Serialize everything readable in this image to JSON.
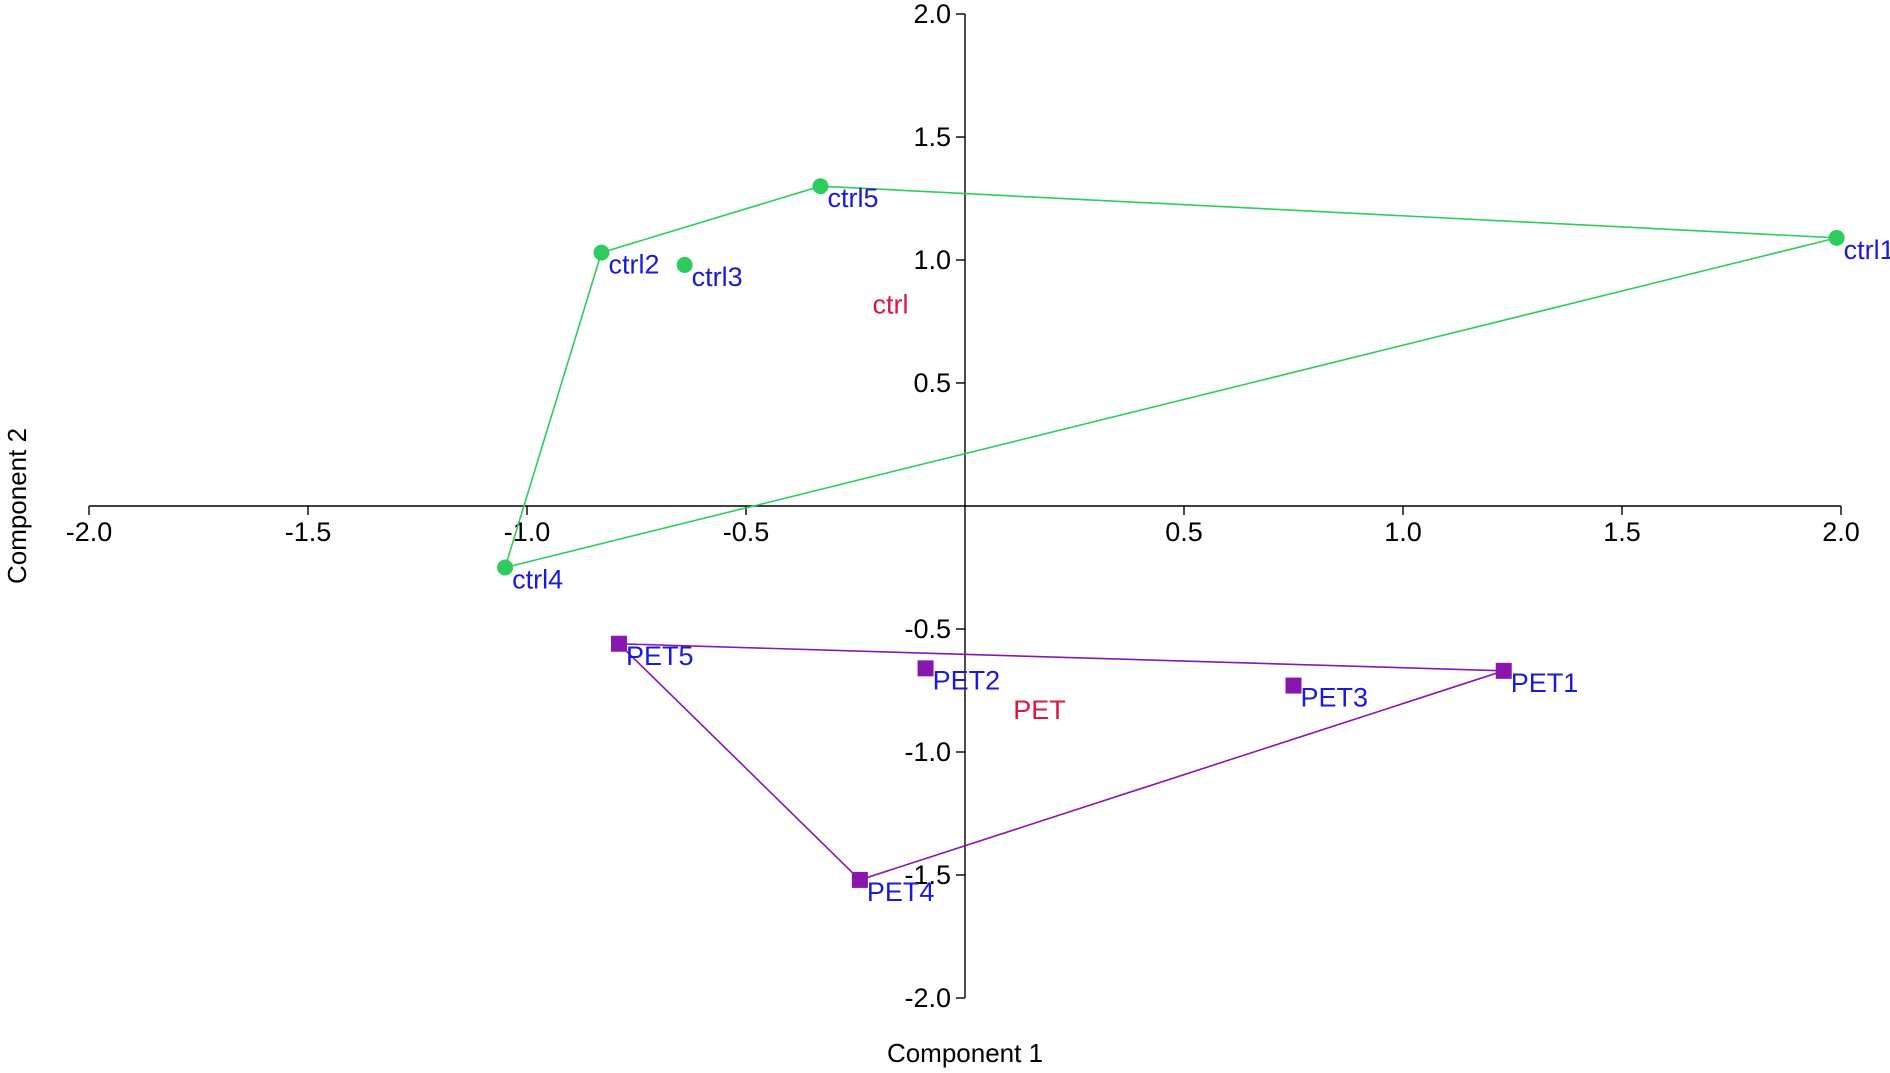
{
  "chart_data": {
    "type": "scatter",
    "xlabel": "Component 1",
    "ylabel": "Component 2",
    "xlim": [
      -2.0,
      2.0
    ],
    "ylim": [
      -2.0,
      2.0
    ],
    "xticks": [
      "-2.0",
      "-1.5",
      "-1.0",
      "-0.5",
      "0.5",
      "1.0",
      "1.5",
      "2.0"
    ],
    "yticks": [
      "2.0",
      "1.5",
      "1.0",
      "0.5",
      "-0.5",
      "-1.0",
      "-1.5",
      "-2.0"
    ],
    "xtick_values": [
      -2.0,
      -1.5,
      -1.0,
      -0.5,
      0.5,
      1.0,
      1.5,
      2.0
    ],
    "ytick_values": [
      2.0,
      1.5,
      1.0,
      0.5,
      -0.5,
      -1.0,
      -1.5,
      -2.0
    ],
    "grid": false,
    "label_color": "#1a1adb",
    "centroid_color": "#e0143c",
    "series": [
      {
        "group": "ctrl",
        "marker": "circle",
        "color": "#2ecc5f",
        "points": [
          {
            "label": "ctrl1",
            "x": 1.99,
            "y": 1.09
          },
          {
            "label": "ctrl2",
            "x": -0.83,
            "y": 1.03
          },
          {
            "label": "ctrl3",
            "x": -0.64,
            "y": 0.98
          },
          {
            "label": "ctrl4",
            "x": -1.05,
            "y": -0.25
          },
          {
            "label": "ctrl5",
            "x": -0.33,
            "y": 1.3
          }
        ],
        "hull": [
          "ctrl5",
          "ctrl1",
          "ctrl4",
          "ctrl2",
          "ctrl5"
        ],
        "centroid": {
          "label": "ctrl",
          "x": -0.17,
          "y": 0.82
        }
      },
      {
        "group": "PET",
        "marker": "square",
        "color": "#8a16b0",
        "points": [
          {
            "label": "PET1",
            "x": 1.23,
            "y": -0.67
          },
          {
            "label": "PET2",
            "x": -0.09,
            "y": -0.66
          },
          {
            "label": "PET3",
            "x": 0.75,
            "y": -0.73
          },
          {
            "label": "PET4",
            "x": -0.24,
            "y": -1.52
          },
          {
            "label": "PET5",
            "x": -0.79,
            "y": -0.56
          }
        ],
        "hull": [
          "PET5",
          "PET1",
          "PET4",
          "PET5"
        ],
        "centroid": {
          "label": "PET",
          "x": 0.17,
          "y": -0.83
        }
      }
    ]
  }
}
